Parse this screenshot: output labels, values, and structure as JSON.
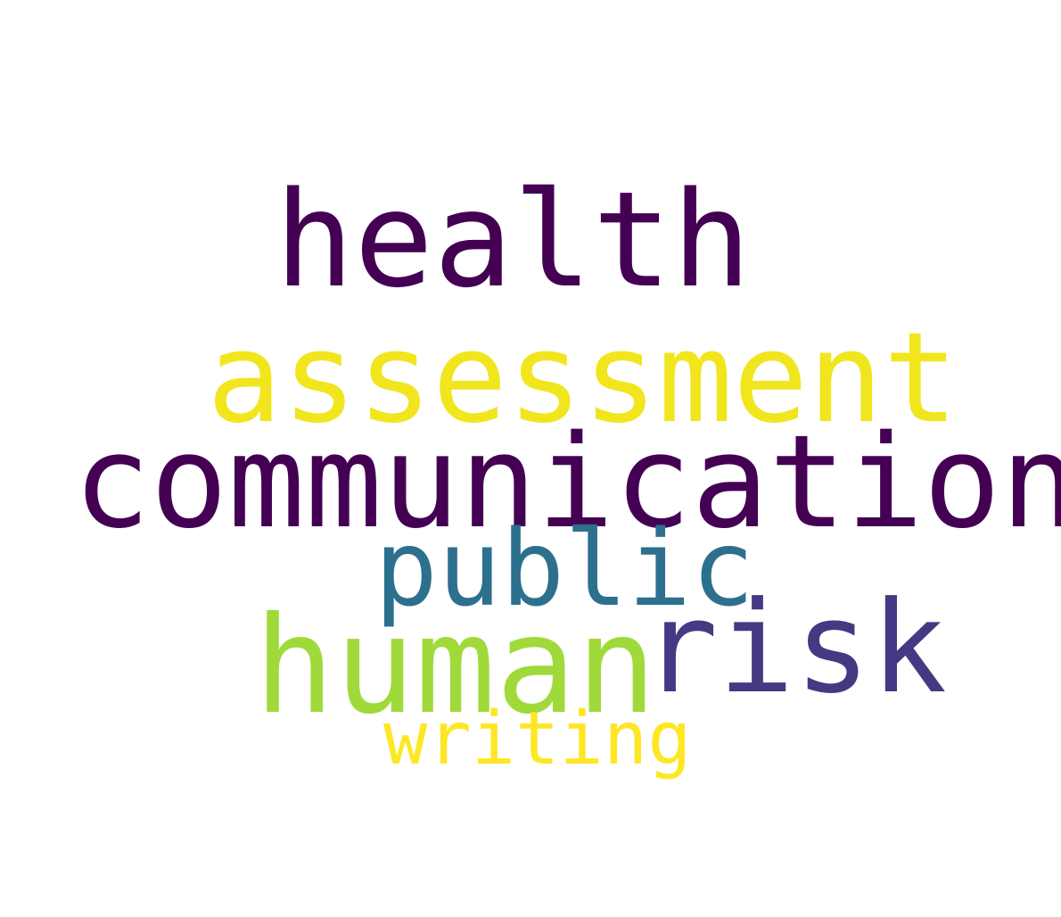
{
  "background": "#ffffff",
  "words": [
    {
      "id": "health",
      "text": "health",
      "color": "#440154"
    },
    {
      "id": "assessment",
      "text": "assessment",
      "color": "#f1e51d"
    },
    {
      "id": "communication",
      "text": "communication",
      "color": "#440154"
    },
    {
      "id": "public",
      "text": "public",
      "color": "#2d708e"
    },
    {
      "id": "risk",
      "text": "risk",
      "color": "#443a83"
    },
    {
      "id": "human",
      "text": "human",
      "color": "#9fda3a"
    },
    {
      "id": "writing",
      "text": "writing",
      "color": "#fde725"
    }
  ]
}
